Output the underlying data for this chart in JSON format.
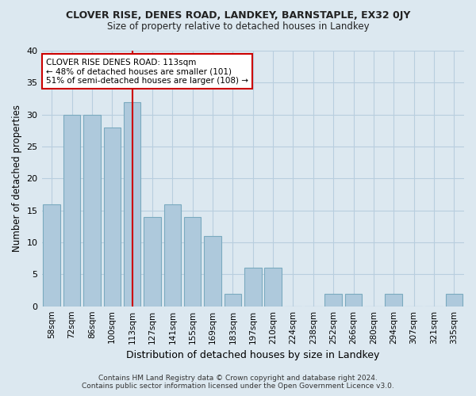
{
  "title": "CLOVER RISE, DENES ROAD, LANDKEY, BARNSTAPLE, EX32 0JY",
  "subtitle": "Size of property relative to detached houses in Landkey",
  "xlabel": "Distribution of detached houses by size in Landkey",
  "ylabel": "Number of detached properties",
  "categories": [
    "58sqm",
    "72sqm",
    "86sqm",
    "100sqm",
    "113sqm",
    "127sqm",
    "141sqm",
    "155sqm",
    "169sqm",
    "183sqm",
    "197sqm",
    "210sqm",
    "224sqm",
    "238sqm",
    "252sqm",
    "266sqm",
    "280sqm",
    "294sqm",
    "307sqm",
    "321sqm",
    "335sqm"
  ],
  "values": [
    16,
    30,
    30,
    28,
    32,
    14,
    16,
    14,
    11,
    2,
    6,
    6,
    0,
    0,
    2,
    2,
    0,
    2,
    0,
    0,
    2
  ],
  "highlight_index": 4,
  "bar_color": "#aec9dc",
  "bar_edge_color": "#7aaabf",
  "highlight_line_color": "#cc0000",
  "ylim": [
    0,
    40
  ],
  "yticks": [
    0,
    5,
    10,
    15,
    20,
    25,
    30,
    35,
    40
  ],
  "annotation_title": "CLOVER RISE DENES ROAD: 113sqm",
  "annotation_line1": "← 48% of detached houses are smaller (101)",
  "annotation_line2": "51% of semi-detached houses are larger (108) →",
  "footer_line1": "Contains HM Land Registry data © Crown copyright and database right 2024.",
  "footer_line2": "Contains public sector information licensed under the Open Government Licence v3.0.",
  "bg_color": "#dce8f0",
  "plot_bg_color": "#dce8f0",
  "grid_color": "#b8cede"
}
